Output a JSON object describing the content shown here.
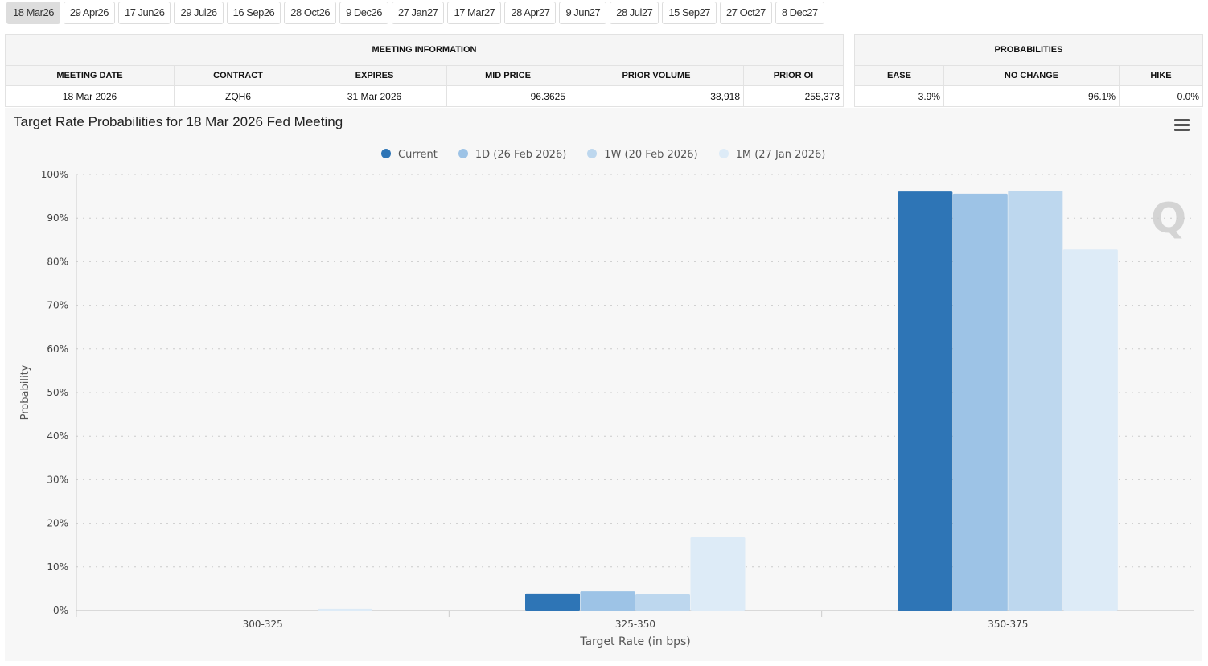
{
  "tabs": [
    "18 Mar26",
    "29 Apr26",
    "17 Jun26",
    "29 Jul26",
    "16 Sep26",
    "28 Oct26",
    "9 Dec26",
    "27 Jan27",
    "17 Mar27",
    "28 Apr27",
    "9 Jun27",
    "28 Jul27",
    "15 Sep27",
    "27 Oct27",
    "8 Dec27"
  ],
  "active_tab": "18 Mar26",
  "meeting_info": {
    "title": "MEETING INFORMATION",
    "headers": [
      "MEETING DATE",
      "CONTRACT",
      "EXPIRES",
      "MID PRICE",
      "PRIOR VOLUME",
      "PRIOR OI"
    ],
    "values": [
      "18 Mar 2026",
      "ZQH6",
      "31 Mar 2026",
      "96.3625",
      "38,918",
      "255,373"
    ]
  },
  "probabilities": {
    "title": "PROBABILITIES",
    "headers": [
      "EASE",
      "NO CHANGE",
      "HIKE"
    ],
    "values": [
      "3.9%",
      "96.1%",
      "0.0%"
    ]
  },
  "chart_data": {
    "type": "bar",
    "title": "Target Rate Probabilities for 18 Mar 2026 Fed Meeting",
    "xlabel": "Target Rate (in bps)",
    "ylabel": "Probability",
    "categories": [
      "300-325",
      "325-350",
      "350-375"
    ],
    "ylim": [
      0,
      100
    ],
    "yticks": [
      "0%",
      "10%",
      "20%",
      "30%",
      "40%",
      "50%",
      "60%",
      "70%",
      "80%",
      "90%",
      "100%"
    ],
    "grid": true,
    "legend": "top-center",
    "series": [
      {
        "name": "Current",
        "color": "#2e75b6",
        "values": [
          0,
          3.9,
          96.1
        ]
      },
      {
        "name": "1D (26 Feb 2026)",
        "color": "#9dc3e6",
        "values": [
          0,
          4.4,
          95.6
        ]
      },
      {
        "name": "1W (20 Feb 2026)",
        "color": "#bdd7ee",
        "values": [
          0,
          3.7,
          96.3
        ]
      },
      {
        "name": "1M (27 Jan 2026)",
        "color": "#ddebf7",
        "values": [
          0.4,
          16.8,
          82.8
        ]
      }
    ]
  }
}
